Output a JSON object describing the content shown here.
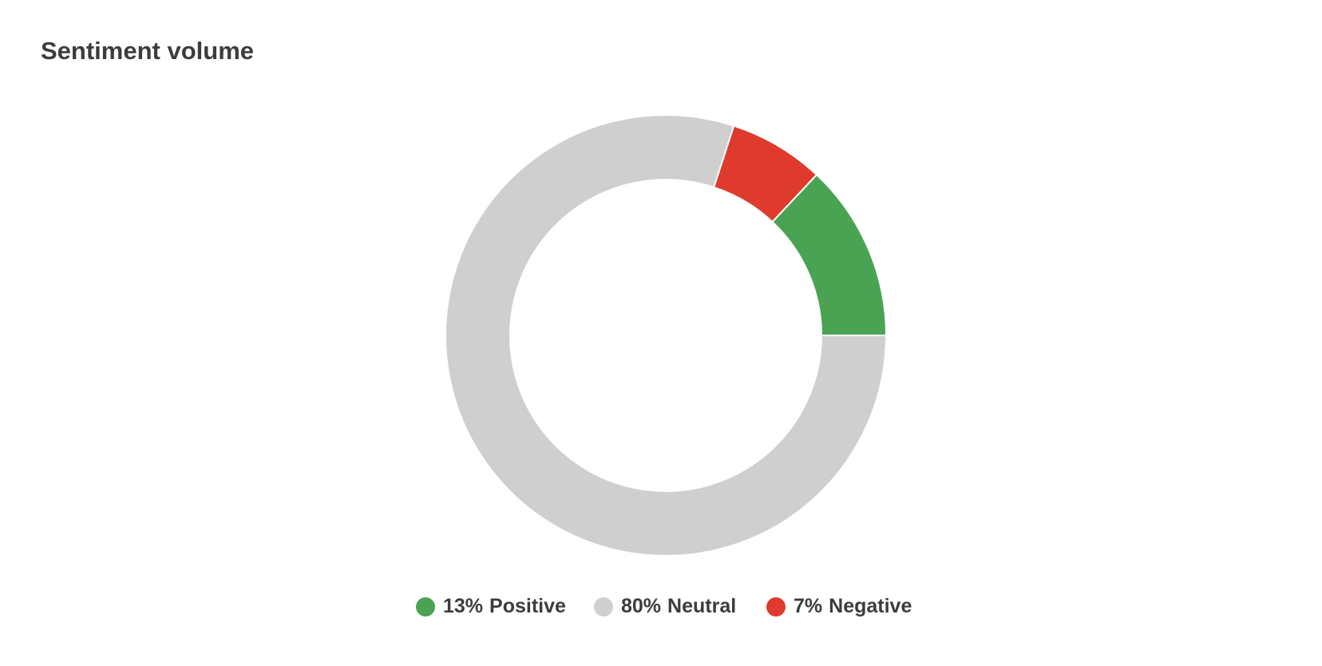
{
  "chart_data": {
    "type": "donut",
    "title": "Sentiment volume",
    "categories": [
      "Positive",
      "Neutral",
      "Negative"
    ],
    "values": [
      13,
      80,
      7
    ],
    "value_labels": [
      "13%",
      "80%",
      "7%"
    ],
    "colors": [
      "#4aa353",
      "#cfcfcf",
      "#de3a2e"
    ],
    "legend": "bottom"
  }
}
